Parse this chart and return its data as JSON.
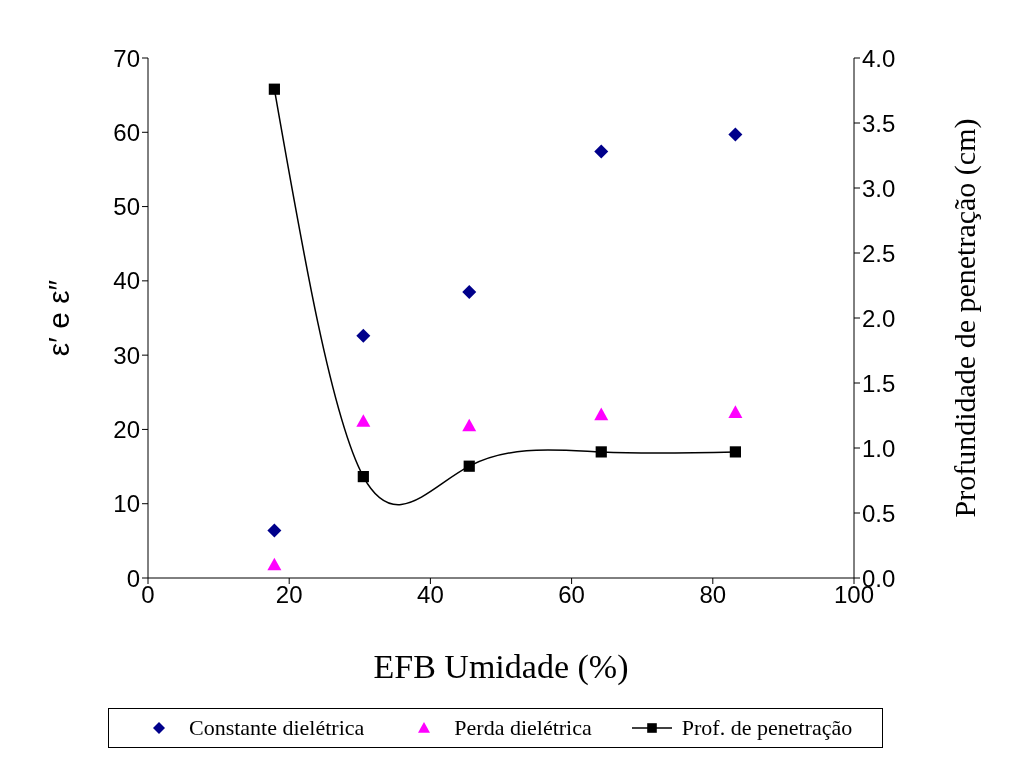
{
  "chart_data": {
    "type": "scatter",
    "xlabel": "EFB Umidade (%)",
    "ylabel": "ε′ e ε″",
    "y2label": "Profundidade de penetração (cm)",
    "xlim": [
      0,
      100
    ],
    "xticks": [
      0,
      20,
      40,
      60,
      80,
      100
    ],
    "ylim": [
      0,
      70
    ],
    "yticks": [
      0,
      10,
      20,
      30,
      40,
      50,
      60,
      70
    ],
    "y2lim": [
      0,
      4
    ],
    "y2ticks": [
      {
        "value": 0,
        "label": "0.0"
      },
      {
        "value": 0.5,
        "label": "0.5"
      },
      {
        "value": 1,
        "label": "1.0"
      },
      {
        "value": 1.5,
        "label": "1.5"
      },
      {
        "value": 2,
        "label": "2.0"
      },
      {
        "value": 2.5,
        "label": "2.5"
      },
      {
        "value": 3,
        "label": "3.0"
      },
      {
        "value": 3.5,
        "label": "3.5"
      },
      {
        "value": 4,
        "label": "4.0"
      }
    ],
    "x": [
      17.9,
      30.5,
      45.5,
      64.2,
      83.2
    ],
    "grid": false,
    "legend": "bottom",
    "series": [
      {
        "name": "Constante dielétrica",
        "color": "#00008b",
        "marker": "diamond",
        "values": [
          6.4,
          32.6,
          38.5,
          57.4,
          59.7
        ]
      },
      {
        "name": "Perda dielétrica",
        "color": "#ff00ff",
        "marker": "triangle",
        "values": [
          1.8,
          21.1,
          20.5,
          22,
          22.3
        ]
      },
      {
        "name": "Prof. de penetração",
        "type": "line",
        "axis": "y2",
        "color": "#000000",
        "marker": "square",
        "line_style": "solid",
        "values": [
          3.76,
          0.78,
          0.86,
          0.97,
          0.97
        ]
      }
    ]
  }
}
